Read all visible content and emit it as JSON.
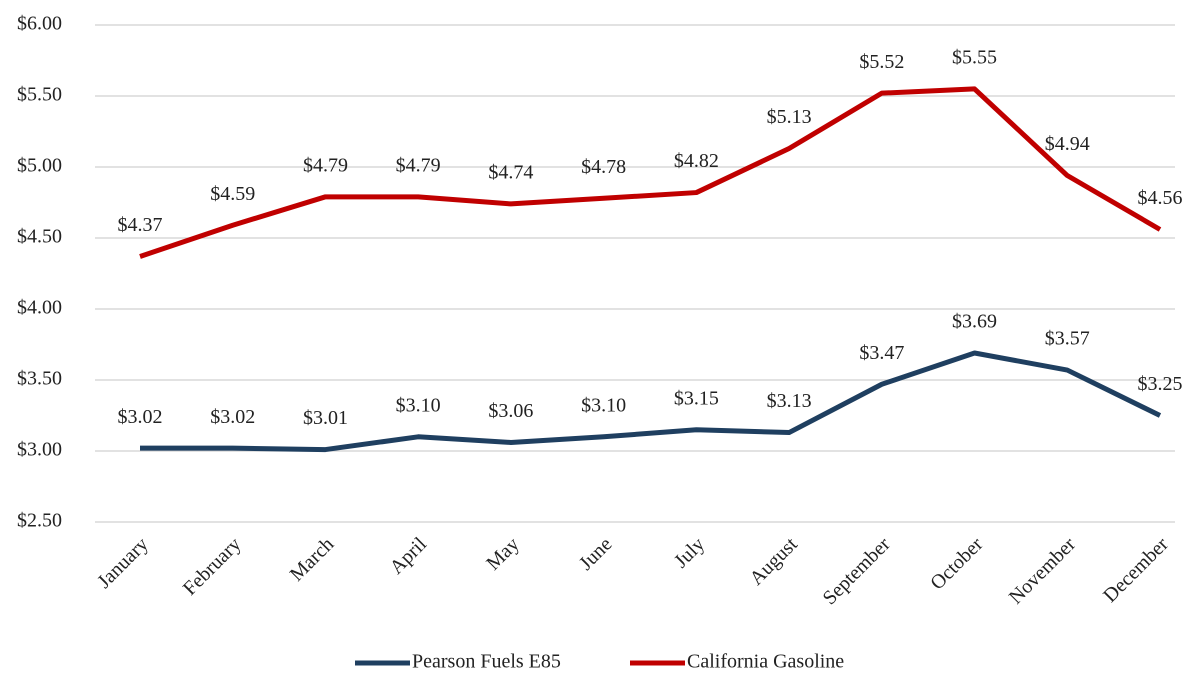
{
  "chart_data": {
    "type": "line",
    "categories": [
      "January",
      "February",
      "March",
      "April",
      "May",
      "June",
      "July",
      "August",
      "September",
      "October",
      "November",
      "December"
    ],
    "series": [
      {
        "name": "Pearson Fuels E85",
        "color": "#1f3f60",
        "values": [
          3.02,
          3.02,
          3.01,
          3.1,
          3.06,
          3.1,
          3.15,
          3.13,
          3.47,
          3.69,
          3.57,
          3.25
        ],
        "value_labels": [
          "$3.02",
          "$3.02",
          "$3.01",
          "$3.10",
          "$3.06",
          "$3.10",
          "$3.15",
          "$3.13",
          "$3.47",
          "$3.69",
          "$3.57",
          "$3.25"
        ]
      },
      {
        "name": "California Gasoline",
        "color": "#c00000",
        "values": [
          4.37,
          4.59,
          4.79,
          4.79,
          4.74,
          4.78,
          4.82,
          5.13,
          5.52,
          5.55,
          4.94,
          4.56
        ],
        "value_labels": [
          "$4.37",
          "$4.59",
          "$4.79",
          "$4.79",
          "$4.74",
          "$4.78",
          "$4.82",
          "$5.13",
          "$5.52",
          "$5.55",
          "$4.94",
          "$4.56"
        ]
      }
    ],
    "ylim": [
      2.5,
      6
    ],
    "yticks": [
      {
        "value": 2.5,
        "label": "$2.50"
      },
      {
        "value": 3,
        "label": "$3.00"
      },
      {
        "value": 3.5,
        "label": "$3.50"
      },
      {
        "value": 4,
        "label": "$4.00"
      },
      {
        "value": 4.5,
        "label": "$4.50"
      },
      {
        "value": 5,
        "label": "$5.00"
      },
      {
        "value": 5.5,
        "label": "$5.50"
      },
      {
        "value": 6,
        "label": "$6.00"
      }
    ],
    "grid": true,
    "legend": "bottom"
  }
}
